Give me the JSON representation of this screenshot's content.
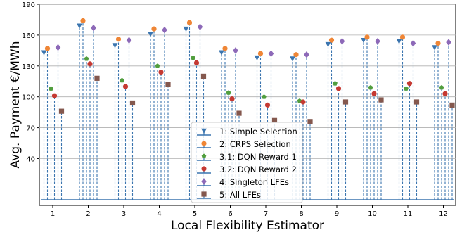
{
  "chart_data": {
    "type": "scatter",
    "title": "",
    "xlabel": "Local Flexibility Estimator",
    "ylabel": "Avg. Payment €/MWh",
    "categories": [
      "1",
      "2",
      "3",
      "4",
      "5",
      "6",
      "7",
      "8",
      "9",
      "10",
      "11",
      "12"
    ],
    "yticks": [
      "40",
      "70",
      "100",
      "130",
      "160",
      "190"
    ],
    "ylim": [
      0,
      190
    ],
    "grid": "horizontal",
    "legend_position": "lower-center",
    "stem_baseline": 0,
    "series": [
      {
        "name": "1: Simple Selection",
        "marker": "triangle-down",
        "color": "#3b75af",
        "values": [
          143,
          169,
          150,
          161,
          166,
          143,
          138,
          137,
          151,
          155,
          154,
          148
        ]
      },
      {
        "name": "2: CRPS Selection",
        "marker": "circle",
        "color": "#ef8636",
        "values": [
          147,
          174,
          156,
          166,
          172,
          147,
          142,
          141,
          155,
          158,
          158,
          152
        ]
      },
      {
        "name": "3.1: DQN Reward 1",
        "marker": "pentagon",
        "color": "#519e3e",
        "values": [
          108,
          137,
          116,
          130,
          138,
          104,
          100,
          96,
          113,
          109,
          108,
          109
        ]
      },
      {
        "name": "3.2: DQN Reward 2",
        "marker": "circle",
        "color": "#c53932",
        "values": [
          101,
          132,
          110,
          124,
          133,
          98,
          92,
          95,
          108,
          103,
          113,
          103
        ]
      },
      {
        "name": "4: Singleton LFEs",
        "marker": "diamond",
        "color": "#8d69b8",
        "values": [
          148,
          167,
          155,
          165,
          168,
          145,
          142,
          141,
          154,
          154,
          152,
          153
        ]
      },
      {
        "name": "5: All LFEs",
        "marker": "square",
        "color": "#84584e",
        "values": [
          86,
          118,
          94,
          112,
          120,
          84,
          77,
          76,
          95,
          97,
          95,
          92
        ]
      }
    ]
  }
}
